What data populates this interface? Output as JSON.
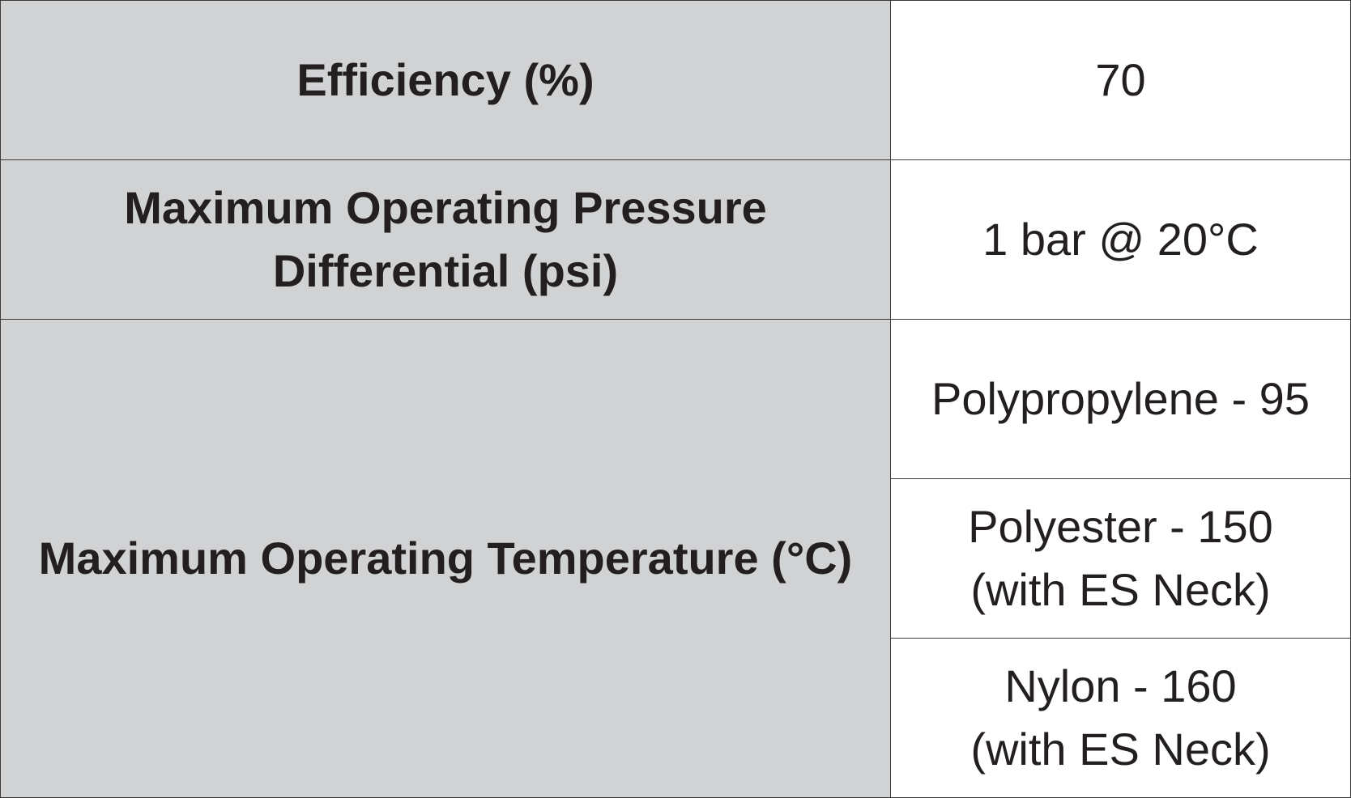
{
  "table": {
    "rows": [
      {
        "label": "Efficiency (%)",
        "values": [
          "70"
        ]
      },
      {
        "label": "Maximum Operating Pressure Differential (psi)",
        "values": [
          "1 bar @ 20°C"
        ]
      },
      {
        "label": "Maximum Operating Temperature (°C)",
        "values": [
          "Polypropylene - 95",
          "Polyester - 150 (with ES Neck)",
          "Nylon - 160 (with ES Neck)"
        ]
      }
    ]
  }
}
